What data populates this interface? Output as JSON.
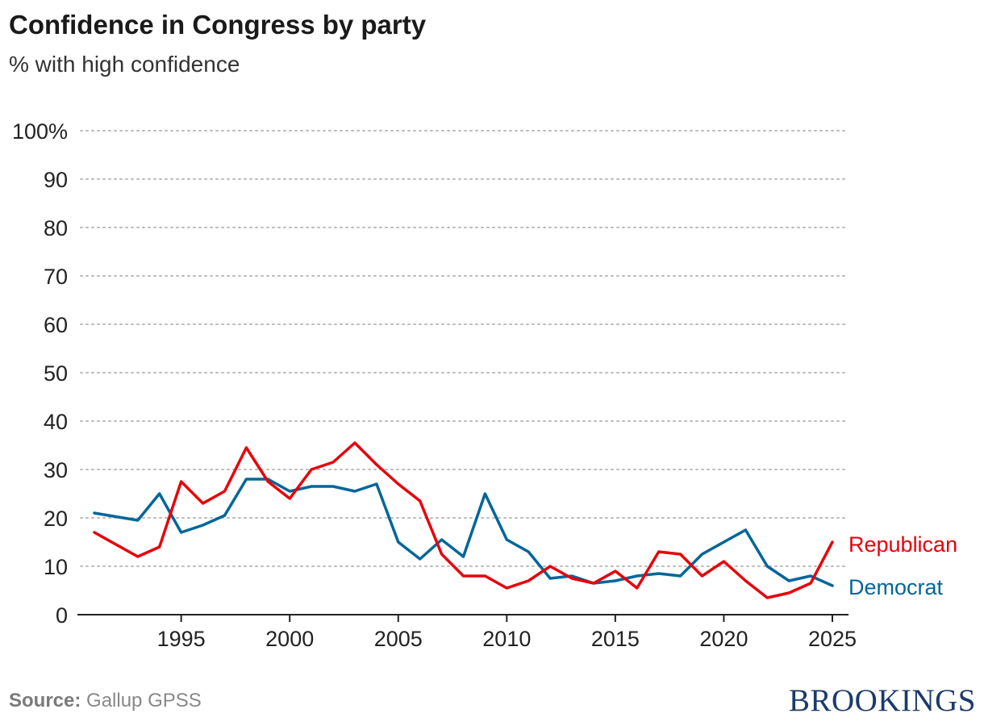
{
  "header": {
    "title": "Confidence in Congress by party",
    "subtitle": "% with high confidence"
  },
  "footer": {
    "source_label": "Source:",
    "source_text": "Gallup GPSS",
    "logo_text": "BROOKINGS"
  },
  "colors": {
    "republican": "#e8000b",
    "democrat": "#006699",
    "grid": "#bbbbbb",
    "axis": "#222222"
  },
  "chart_data": {
    "type": "line",
    "title": "Confidence in Congress by party",
    "subtitle": "% with high confidence",
    "xlabel": "",
    "ylabel": "",
    "xlim": [
      1991,
      2025
    ],
    "ylim": [
      0,
      100
    ],
    "x_ticks": [
      1995,
      2000,
      2005,
      2010,
      2015,
      2020,
      2025
    ],
    "y_ticks": [
      0,
      10,
      20,
      30,
      40,
      50,
      60,
      70,
      80,
      90,
      100
    ],
    "y_tick_labels": [
      "0",
      "10",
      "20",
      "30",
      "40",
      "50",
      "60",
      "70",
      "80",
      "90",
      "100%"
    ],
    "grid": "horizontal dotted",
    "legend": "direct labels at line ends (right)",
    "x": [
      1991,
      1993,
      1994,
      1995,
      1996,
      1997,
      1998,
      1999,
      2000,
      2001,
      2002,
      2003,
      2004,
      2005,
      2006,
      2007,
      2008,
      2009,
      2010,
      2011,
      2012,
      2013,
      2014,
      2015,
      2016,
      2017,
      2018,
      2019,
      2020,
      2021,
      2022,
      2023,
      2024,
      2025
    ],
    "series": [
      {
        "name": "Republican",
        "color": "#e8000b",
        "values": [
          17,
          12,
          14,
          27.5,
          23,
          25.5,
          34.5,
          27.5,
          24,
          30,
          31.5,
          35.5,
          31,
          27,
          23.5,
          12.5,
          8,
          8,
          5.5,
          7,
          10,
          7.5,
          6.5,
          9,
          5.5,
          13,
          12.5,
          8,
          11,
          7,
          3.5,
          4.5,
          6.5,
          15
        ]
      },
      {
        "name": "Democrat",
        "color": "#006699",
        "values": [
          21,
          19.5,
          25,
          17,
          18.5,
          20.5,
          28,
          28,
          25.5,
          26.5,
          26.5,
          25.5,
          27,
          15,
          11.5,
          15.5,
          12,
          25,
          15.5,
          13,
          7.5,
          8,
          6.5,
          7,
          8,
          8.5,
          8,
          12.5,
          15,
          17.5,
          10,
          7,
          8,
          6
        ]
      }
    ]
  }
}
